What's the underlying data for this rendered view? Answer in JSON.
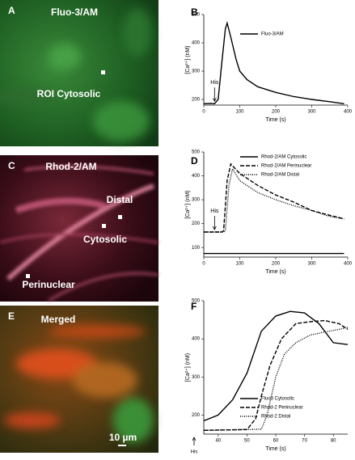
{
  "images": [
    {
      "letter": "A",
      "title": "Fluo-3/AM",
      "labels": [
        "ROI Cytosolic"
      ]
    },
    {
      "letter": "C",
      "title": "Rhod-2/AM",
      "labels": [
        "Distal",
        "Cytosolic",
        "Perinuclear"
      ]
    },
    {
      "letter": "E",
      "title": "Merged",
      "labels": [
        "10 µm"
      ]
    }
  ],
  "chart_data": [
    {
      "type": "line",
      "letter": "B",
      "xlabel": "Time (s)",
      "ylabel": "[Ca²⁺] (nM)",
      "xlim": [
        0,
        400
      ],
      "xticks": [
        0,
        100,
        200,
        300,
        400
      ],
      "ylim": [
        180,
        500
      ],
      "yticks": [
        200,
        300,
        400,
        500
      ],
      "legend": "upper right",
      "annotation": {
        "text": "His",
        "x": 30
      },
      "annotation_side": "above",
      "series": [
        {
          "name": "Fluo-3/AM",
          "color": "#000000",
          "dash": "solid",
          "x": [
            0,
            20,
            30,
            40,
            50,
            60,
            65,
            75,
            90,
            100,
            120,
            150,
            200,
            250,
            300,
            350,
            390
          ],
          "values": [
            185,
            186,
            185,
            200,
            330,
            450,
            470,
            420,
            340,
            300,
            270,
            245,
            225,
            210,
            200,
            192,
            185
          ]
        }
      ]
    },
    {
      "type": "line",
      "letter": "D",
      "xlabel": "Time (s)",
      "ylabel": "[Ca²⁺] (nM)",
      "xlim": [
        0,
        400
      ],
      "xticks": [
        0,
        100,
        200,
        300,
        400
      ],
      "ylim": [
        60,
        500
      ],
      "yticks": [
        100,
        200,
        300,
        400,
        500
      ],
      "legend": "upper right",
      "annotation": {
        "text": "His",
        "x": 30
      },
      "annotation_side": "above",
      "series": [
        {
          "name": "Rhod-2/AM Cytosolic",
          "color": "#000000",
          "dash": "solid",
          "x": [
            0,
            100,
            200,
            300,
            390
          ],
          "values": [
            75,
            75,
            75,
            75,
            75
          ]
        },
        {
          "name": "Rhod-2/AM Perinuclear",
          "color": "#000000",
          "dash": "dashed",
          "x": [
            0,
            50,
            55,
            65,
            75,
            100,
            150,
            200,
            250,
            300,
            350,
            390
          ],
          "values": [
            165,
            165,
            170,
            380,
            450,
            410,
            360,
            320,
            290,
            255,
            235,
            220
          ]
        },
        {
          "name": "Rhod-2/AM Distal",
          "color": "#000000",
          "dash": "dotted",
          "x": [
            0,
            55,
            60,
            70,
            80,
            100,
            150,
            200,
            250,
            300,
            350,
            390
          ],
          "values": [
            165,
            165,
            170,
            360,
            430,
            380,
            330,
            300,
            275,
            255,
            230,
            220
          ]
        }
      ]
    },
    {
      "type": "line",
      "letter": "F",
      "xlabel": "Time (s)",
      "ylabel": "[Ca²⁺] (nM)",
      "xlim": [
        35,
        85
      ],
      "xticks": [
        40,
        50,
        60,
        70,
        80
      ],
      "ylim": [
        150,
        500
      ],
      "yticks": [
        200,
        300,
        400,
        500
      ],
      "legend": "lower right",
      "annotation": {
        "text": "His",
        "x": 35
      },
      "annotation_side": "below",
      "series": [
        {
          "name": "Fluo3 Cytosolic",
          "color": "#000000",
          "dash": "solid",
          "x": [
            35,
            40,
            45,
            50,
            55,
            60,
            65,
            70,
            75,
            80,
            85
          ],
          "values": [
            185,
            200,
            240,
            310,
            420,
            460,
            472,
            468,
            440,
            390,
            385
          ]
        },
        {
          "name": "Rhod-2 Perinuclear",
          "color": "#000000",
          "dash": "dashed",
          "x": [
            35,
            50,
            53,
            55,
            58,
            62,
            67,
            72,
            77,
            82,
            85
          ],
          "values": [
            160,
            162,
            190,
            250,
            330,
            400,
            440,
            445,
            448,
            440,
            425
          ]
        },
        {
          "name": "Rhod-2 Distal",
          "color": "#000000",
          "dash": "dotted",
          "x": [
            35,
            55,
            57,
            60,
            63,
            67,
            72,
            77,
            82,
            85
          ],
          "values": [
            160,
            163,
            200,
            300,
            360,
            390,
            410,
            418,
            425,
            430
          ]
        }
      ]
    }
  ]
}
